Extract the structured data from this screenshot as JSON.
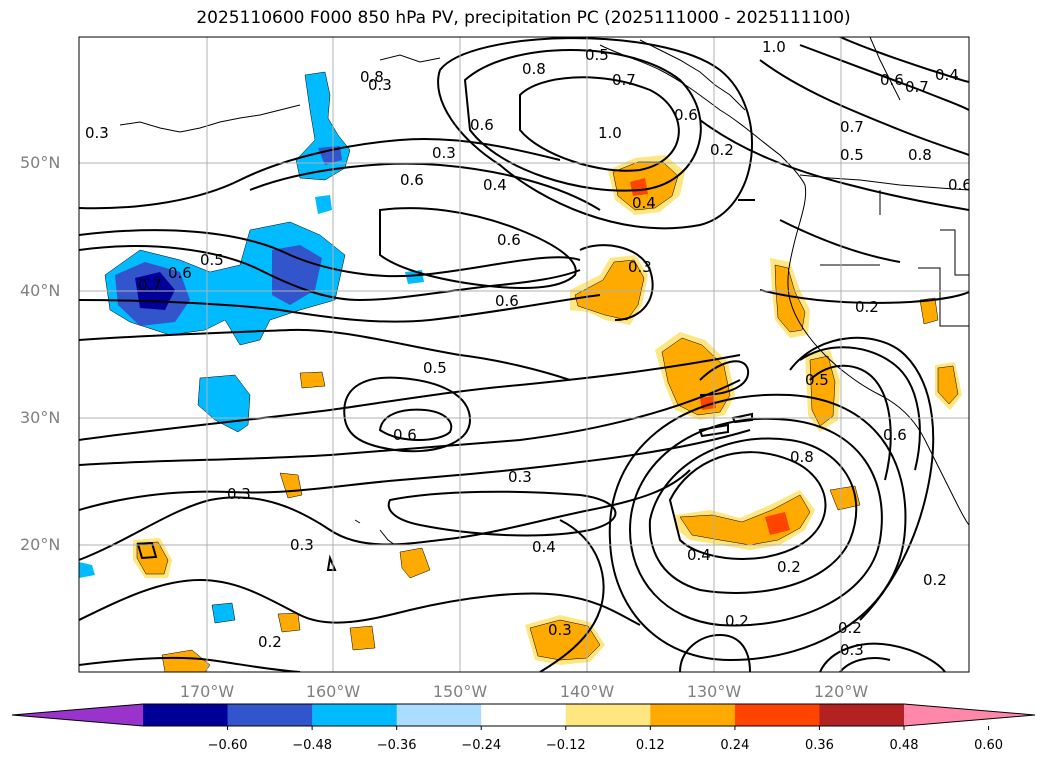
{
  "title": "2025110600 F000 850 hPa PV, precipitation PC (2025111000 - 2025111100)",
  "latitude_labels": [
    "50°N",
    "40°N",
    "30°N",
    "20°N"
  ],
  "longitude_labels": [
    "170°W",
    "160°W",
    "150°W",
    "140°W",
    "130°W",
    "120°W"
  ],
  "colorbar": {
    "ticks": [
      "−0.60",
      "−0.48",
      "−0.36",
      "−0.24",
      "−0.12",
      "0.12",
      "0.24",
      "0.36",
      "0.48",
      "0.60"
    ],
    "colors": [
      "#9933cc",
      "#000099",
      "#3355cc",
      "#00bbff",
      "#aaddff",
      "#ffffff",
      "#ffe680",
      "#ffaa00",
      "#ff4400",
      "#b22222",
      "#ff88aa"
    ]
  },
  "contour_labels": [
    "0.5",
    "1.0",
    "0.8",
    "0.7",
    "0.6",
    "0.3",
    "0.4",
    "0.8",
    "0.6",
    "0.3",
    "0.4",
    "0.3",
    "0.5",
    "0.6",
    "0.7",
    "0.6",
    "0.4",
    "0.3",
    "0.6",
    "0.5",
    "0.6",
    "0.3",
    "0.2",
    "0.5",
    "0.3",
    "0.8",
    "0.6",
    "0.3",
    "0.4",
    "0.2",
    "0.2",
    "0.2",
    "0.2",
    "0.3",
    "0.2",
    "0.7",
    "0.5",
    "0.8",
    "0.4",
    "0.6",
    "0.3",
    "1.0",
    "0.7",
    "0.6",
    "0.6",
    "0.2"
  ],
  "colors": {
    "contour": "#000000",
    "grid": "#b0b0b0",
    "coast": "#000000"
  }
}
